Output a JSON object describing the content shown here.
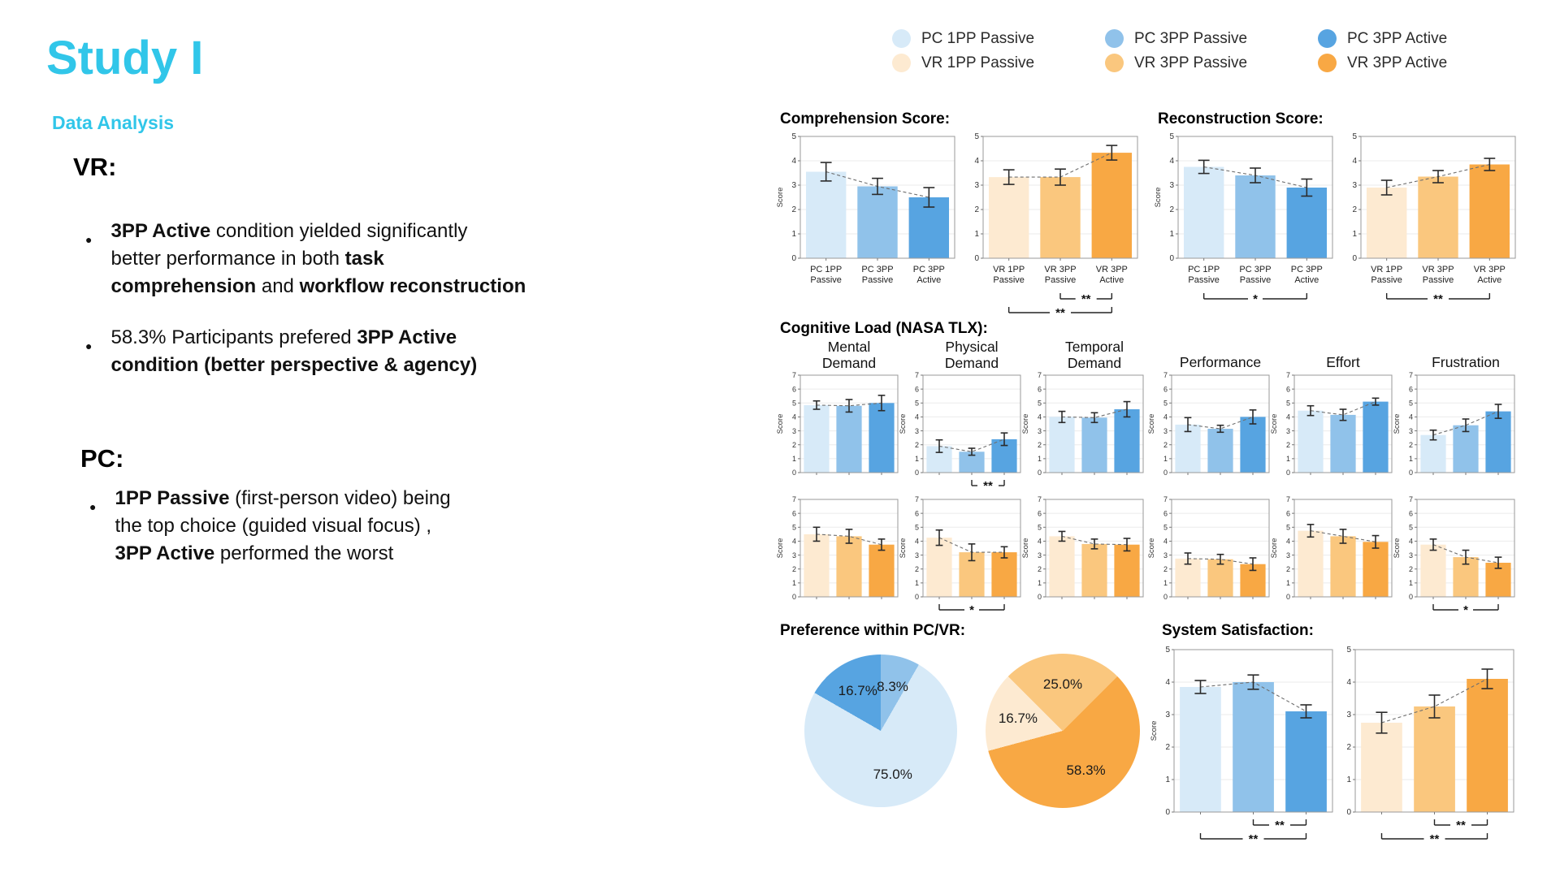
{
  "slide": {
    "title": "Study I",
    "subtitle": "Data Analysis",
    "vr": {
      "heading": "VR:",
      "bullets": [
        {
          "parts": [
            {
              "t": "3PP Active",
              "b": true
            },
            {
              "t": " condition yielded significantly",
              "b": false
            },
            {
              "br": true
            },
            {
              "t": "better performance in both ",
              "b": false
            },
            {
              "t": "task",
              "b": true
            },
            {
              "br": true
            },
            {
              "t": "comprehension",
              "b": true
            },
            {
              "t": " and ",
              "b": false
            },
            {
              "t": "workflow reconstruction",
              "b": true
            }
          ]
        },
        {
          "parts": [
            {
              "t": "58.3% Participants prefered ",
              "b": false
            },
            {
              "t": "3PP Active",
              "b": true
            },
            {
              "br": true
            },
            {
              "t": "condition (better perspective & agency)",
              "b": true
            }
          ]
        }
      ]
    },
    "pc": {
      "heading": "PC:",
      "bullets": [
        {
          "parts": [
            {
              "t": "1PP Passive",
              "b": true
            },
            {
              "t": " (first-person video) being",
              "b": false
            },
            {
              "br": true
            },
            {
              "t": "the top choice (guided visual focus) ,",
              "b": false
            },
            {
              "br": true
            },
            {
              "t": "3PP Active",
              "b": true
            },
            {
              "t": " performed the worst",
              "b": false
            }
          ]
        }
      ]
    }
  },
  "colors": {
    "accent": "#31C6E9",
    "pc": [
      "#D7EAF8",
      "#90C2EA",
      "#57A4E1"
    ],
    "vr": [
      "#FDEAD1",
      "#FAC77E",
      "#F8A844"
    ],
    "error_bar": "#2b2b2b",
    "trend_dash": "#6f6f6f"
  },
  "legend": {
    "items": [
      {
        "label": "PC 1PP Passive",
        "color_ref": [
          "pc",
          0
        ]
      },
      {
        "label": "PC 3PP Passive",
        "color_ref": [
          "pc",
          1
        ]
      },
      {
        "label": "PC 3PP Active",
        "color_ref": [
          "pc",
          2
        ]
      },
      {
        "label": "VR 1PP Passive",
        "color_ref": [
          "vr",
          0
        ]
      },
      {
        "label": "VR 3PP Passive",
        "color_ref": [
          "vr",
          1
        ]
      },
      {
        "label": "VR 3PP Active",
        "color_ref": [
          "vr",
          2
        ]
      }
    ]
  },
  "sections": {
    "comprehension": {
      "title": "Comprehension Score:"
    },
    "reconstruction": {
      "title": "Reconstruction Score:"
    },
    "tlx": {
      "title": "Cognitive Load (NASA TLX):",
      "columns": [
        [
          "Mental",
          "Demand"
        ],
        [
          "Physical",
          "Demand"
        ],
        [
          "Temporal",
          "Demand"
        ],
        [
          "Performance"
        ],
        [
          "Effort"
        ],
        [
          "Frustration"
        ]
      ]
    },
    "preference": {
      "title": "Preference within PC/VR:"
    },
    "satisfaction": {
      "title": "System Satisfaction:"
    }
  },
  "chart_data": {
    "categories": {
      "pc": [
        "PC 1PP Passive",
        "PC 3PP Passive",
        "PC 3PP Active"
      ],
      "vr": [
        "VR 1PP Passive",
        "VR 3PP Passive",
        "VR 3PP Active"
      ]
    },
    "bar_charts": {
      "comp_pc": {
        "type": "bar",
        "palette": "pc",
        "ylabel": "Score",
        "ylim": 5,
        "yticks": [
          0,
          1,
          2,
          3,
          4,
          5
        ],
        "values": [
          3.55,
          2.95,
          2.5
        ],
        "errors": [
          0.38,
          0.33,
          0.4
        ],
        "xlabels": [
          [
            "PC 1PP",
            "Passive"
          ],
          [
            "PC 3PP",
            "Passive"
          ],
          [
            "PC 3PP",
            "Active"
          ]
        ],
        "brackets": []
      },
      "comp_vr": {
        "type": "bar",
        "palette": "vr",
        "ylabel": "",
        "ylim": 5,
        "yticks": [
          0,
          1,
          2,
          3,
          4,
          5
        ],
        "values": [
          3.33,
          3.33,
          4.33
        ],
        "errors": [
          0.3,
          0.33,
          0.3
        ],
        "xlabels": [
          [
            "VR 1PP",
            "Passive"
          ],
          [
            "VR 3PP",
            "Passive"
          ],
          [
            "VR 3PP",
            "Active"
          ]
        ],
        "brackets": [
          {
            "from": 1,
            "to": 2,
            "label": "**",
            "level": 0
          },
          {
            "from": 0,
            "to": 2,
            "label": "**",
            "level": 1
          }
        ]
      },
      "recon_pc": {
        "type": "bar",
        "palette": "pc",
        "ylabel": "Score",
        "ylim": 5,
        "yticks": [
          0,
          1,
          2,
          3,
          4,
          5
        ],
        "values": [
          3.75,
          3.4,
          2.9
        ],
        "errors": [
          0.27,
          0.3,
          0.35
        ],
        "xlabels": [
          [
            "PC 1PP",
            "Passive"
          ],
          [
            "PC 3PP",
            "Passive"
          ],
          [
            "PC 3PP",
            "Active"
          ]
        ],
        "brackets": [
          {
            "from": 0,
            "to": 2,
            "label": "*",
            "level": 0
          }
        ]
      },
      "recon_vr": {
        "type": "bar",
        "palette": "vr",
        "ylabel": "",
        "ylim": 5,
        "yticks": [
          0,
          1,
          2,
          3,
          4,
          5
        ],
        "values": [
          2.9,
          3.35,
          3.85
        ],
        "errors": [
          0.3,
          0.25,
          0.25
        ],
        "xlabels": [
          [
            "VR 1PP",
            "Passive"
          ],
          [
            "VR 3PP",
            "Passive"
          ],
          [
            "VR 3PP",
            "Active"
          ]
        ],
        "brackets": [
          {
            "from": 0,
            "to": 2,
            "label": "**",
            "level": 0
          }
        ]
      },
      "tlx_pc_mental": {
        "type": "bar",
        "palette": "pc",
        "ylabel": "Score",
        "ylim": 7,
        "yticks": [
          0,
          1,
          2,
          3,
          4,
          5,
          6,
          7
        ],
        "values": [
          4.85,
          4.8,
          5.0
        ],
        "errors": [
          0.3,
          0.45,
          0.55
        ],
        "brackets": []
      },
      "tlx_pc_physical": {
        "type": "bar",
        "palette": "pc",
        "ylabel": "Score",
        "ylim": 7,
        "yticks": [
          0,
          1,
          2,
          3,
          4,
          5,
          6,
          7
        ],
        "values": [
          1.9,
          1.5,
          2.4
        ],
        "errors": [
          0.45,
          0.25,
          0.45
        ],
        "brackets": [
          {
            "from": 1,
            "to": 2,
            "label": "**",
            "level": 0
          }
        ]
      },
      "tlx_pc_temporal": {
        "type": "bar",
        "palette": "pc",
        "ylabel": "Score",
        "ylim": 7,
        "yticks": [
          0,
          1,
          2,
          3,
          4,
          5,
          6,
          7
        ],
        "values": [
          4.0,
          3.95,
          4.55
        ],
        "errors": [
          0.4,
          0.35,
          0.55
        ],
        "brackets": []
      },
      "tlx_pc_performance": {
        "type": "bar",
        "palette": "pc",
        "ylabel": "Score",
        "ylim": 7,
        "yticks": [
          0,
          1,
          2,
          3,
          4,
          5,
          6,
          7
        ],
        "values": [
          3.45,
          3.15,
          4.0
        ],
        "errors": [
          0.5,
          0.25,
          0.5
        ],
        "brackets": []
      },
      "tlx_pc_effort": {
        "type": "bar",
        "palette": "pc",
        "ylabel": "Score",
        "ylim": 7,
        "yticks": [
          0,
          1,
          2,
          3,
          4,
          5,
          6,
          7
        ],
        "values": [
          4.45,
          4.15,
          5.1
        ],
        "errors": [
          0.35,
          0.4,
          0.25
        ],
        "brackets": []
      },
      "tlx_pc_frustration": {
        "type": "bar",
        "palette": "pc",
        "ylabel": "Score",
        "ylim": 7,
        "yticks": [
          0,
          1,
          2,
          3,
          4,
          5,
          6,
          7
        ],
        "values": [
          2.7,
          3.4,
          4.4
        ],
        "errors": [
          0.35,
          0.45,
          0.5
        ],
        "brackets": []
      },
      "tlx_vr_mental": {
        "type": "bar",
        "palette": "vr",
        "ylabel": "Score",
        "ylim": 7,
        "yticks": [
          0,
          1,
          2,
          3,
          4,
          5,
          6,
          7
        ],
        "values": [
          4.5,
          4.35,
          3.75
        ],
        "errors": [
          0.5,
          0.5,
          0.4
        ],
        "brackets": []
      },
      "tlx_vr_physical": {
        "type": "bar",
        "palette": "vr",
        "ylabel": "Score",
        "ylim": 7,
        "yticks": [
          0,
          1,
          2,
          3,
          4,
          5,
          6,
          7
        ],
        "values": [
          4.25,
          3.2,
          3.2
        ],
        "errors": [
          0.55,
          0.6,
          0.4
        ],
        "brackets": [
          {
            "from": 0,
            "to": 2,
            "label": "*",
            "level": 0
          }
        ]
      },
      "tlx_vr_temporal": {
        "type": "bar",
        "palette": "vr",
        "ylabel": "Score",
        "ylim": 7,
        "yticks": [
          0,
          1,
          2,
          3,
          4,
          5,
          6,
          7
        ],
        "values": [
          4.35,
          3.8,
          3.75
        ],
        "errors": [
          0.35,
          0.35,
          0.45
        ],
        "brackets": []
      },
      "tlx_vr_performance": {
        "type": "bar",
        "palette": "vr",
        "ylabel": "Score",
        "ylim": 7,
        "yticks": [
          0,
          1,
          2,
          3,
          4,
          5,
          6,
          7
        ],
        "values": [
          2.75,
          2.7,
          2.35
        ],
        "errors": [
          0.4,
          0.35,
          0.45
        ],
        "brackets": []
      },
      "tlx_vr_effort": {
        "type": "bar",
        "palette": "vr",
        "ylabel": "Score",
        "ylim": 7,
        "yticks": [
          0,
          1,
          2,
          3,
          4,
          5,
          6,
          7
        ],
        "values": [
          4.75,
          4.35,
          3.95
        ],
        "errors": [
          0.45,
          0.5,
          0.45
        ],
        "brackets": []
      },
      "tlx_vr_frustration": {
        "type": "bar",
        "palette": "vr",
        "ylabel": "Score",
        "ylim": 7,
        "yticks": [
          0,
          1,
          2,
          3,
          4,
          5,
          6,
          7
        ],
        "values": [
          3.75,
          2.85,
          2.45
        ],
        "errors": [
          0.4,
          0.5,
          0.4
        ],
        "brackets": [
          {
            "from": 0,
            "to": 2,
            "label": "*",
            "level": 0
          }
        ]
      },
      "sat_pc": {
        "type": "bar",
        "palette": "pc",
        "ylabel": "Score",
        "ylim": 5,
        "yticks": [
          0,
          1,
          2,
          3,
          4,
          5
        ],
        "values": [
          3.85,
          4.0,
          3.1
        ],
        "errors": [
          0.2,
          0.22,
          0.2
        ],
        "brackets": [
          {
            "from": 1,
            "to": 2,
            "label": "**",
            "level": 0
          },
          {
            "from": 0,
            "to": 2,
            "label": "**",
            "level": 1
          }
        ]
      },
      "sat_vr": {
        "type": "bar",
        "palette": "vr",
        "ylabel": "",
        "ylim": 5,
        "yticks": [
          0,
          1,
          2,
          3,
          4,
          5
        ],
        "values": [
          2.75,
          3.25,
          4.1
        ],
        "errors": [
          0.32,
          0.35,
          0.3
        ],
        "brackets": [
          {
            "from": 1,
            "to": 2,
            "label": "**",
            "level": 0
          },
          {
            "from": 0,
            "to": 2,
            "label": "**",
            "level": 1
          }
        ]
      }
    },
    "pies": {
      "pc": {
        "type": "pie",
        "palette": "pc",
        "rotate": 0,
        "slices": [
          {
            "pct": 8.3,
            "label": "8.3%",
            "color": 1,
            "category": "PC 3PP Passive"
          },
          {
            "pct": 75.0,
            "label": "75.0%",
            "color": 0,
            "category": "PC 1PP Passive"
          },
          {
            "pct": 16.7,
            "label": "16.7%",
            "color": 2,
            "category": "PC 3PP Active"
          }
        ]
      },
      "vr": {
        "type": "pie",
        "palette": "vr",
        "rotate": -45,
        "slices": [
          {
            "pct": 25.0,
            "label": "25.0%",
            "color": 1,
            "category": "VR 3PP Passive"
          },
          {
            "pct": 58.3,
            "label": "58.3%",
            "color": 2,
            "category": "VR 3PP Active"
          },
          {
            "pct": 16.7,
            "label": "16.7%",
            "color": 0,
            "category": "VR 1PP Passive"
          }
        ]
      }
    }
  }
}
